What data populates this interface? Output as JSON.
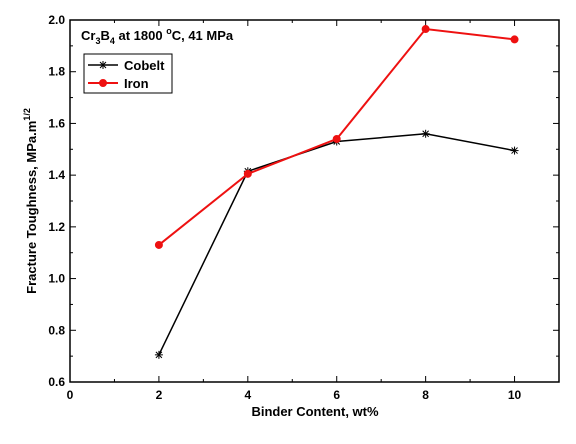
{
  "chart_data": {
    "type": "line",
    "annotation": {
      "prefix": "Cr",
      "sub1": "3",
      "mid": "B",
      "sub2": "4",
      "suffix1": " at 1800 ",
      "sup": "o",
      "suffix2": "C, 41 MPa"
    },
    "xlabel": "Binder Content, wt%",
    "ylabel": {
      "text": "Fracture Toughness, MPa.m",
      "sup": "1/2"
    },
    "xlim": [
      0,
      11
    ],
    "ylim": [
      0.6,
      2.0
    ],
    "xticks": [
      0,
      2,
      4,
      6,
      8,
      10
    ],
    "yticks": [
      0.6,
      0.8,
      1.0,
      1.2,
      1.4,
      1.6,
      1.8,
      2.0
    ],
    "ytick_labels": [
      "0.6",
      "0.8",
      "1.0",
      "1.2",
      "1.4",
      "1.6",
      "1.8",
      "2.0"
    ],
    "grid": false,
    "legend_position": "top-left",
    "series": [
      {
        "name": "Cobelt",
        "color": "#000000",
        "marker": "asterisk",
        "x": [
          2,
          4,
          6,
          8,
          10
        ],
        "y": [
          0.705,
          1.415,
          1.53,
          1.56,
          1.495
        ]
      },
      {
        "name": "Iron",
        "color": "#ee1111",
        "marker": "circle",
        "x": [
          2,
          4,
          6,
          8,
          10
        ],
        "y": [
          1.13,
          1.405,
          1.54,
          1.965,
          1.925
        ]
      }
    ]
  }
}
